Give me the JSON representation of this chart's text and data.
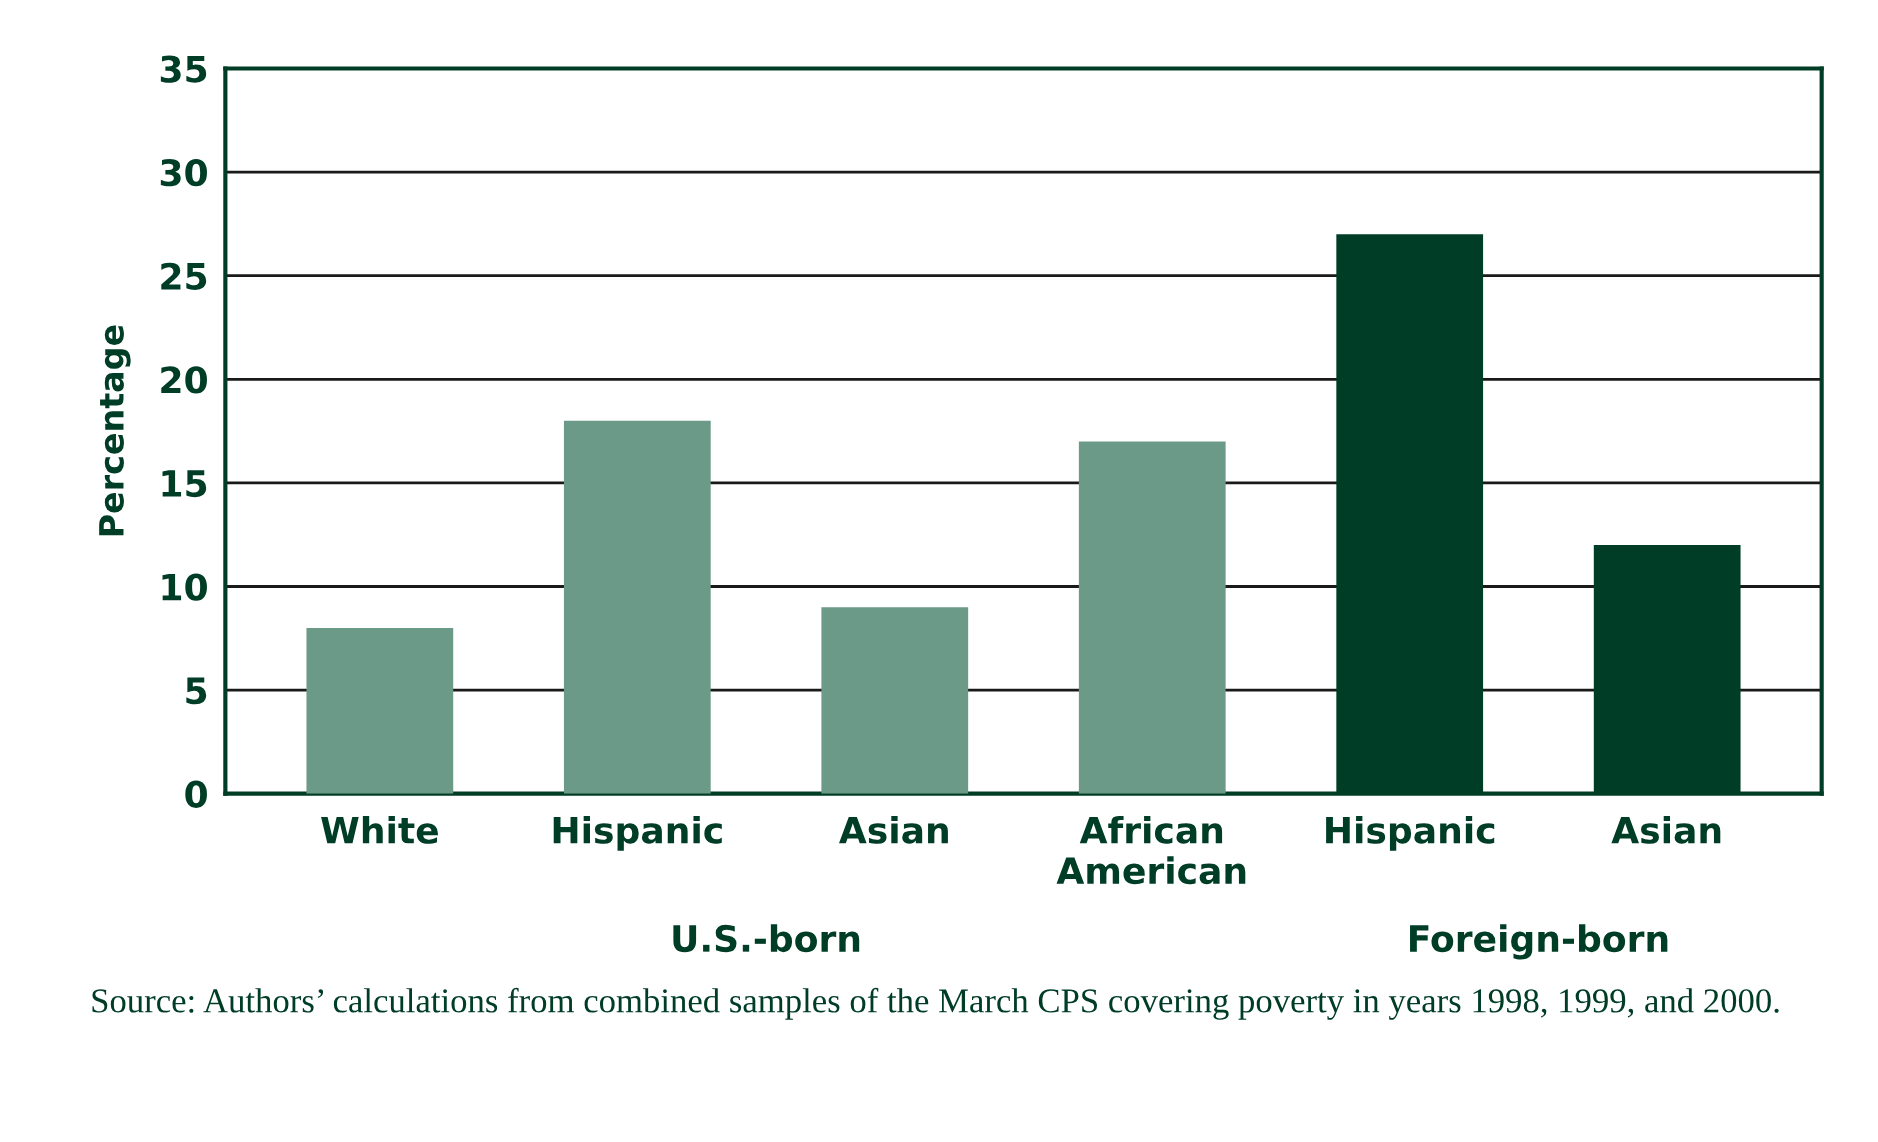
{
  "chart_data": {
    "type": "bar",
    "ylabel": "Percentage",
    "categories": [
      "White",
      "Hispanic",
      "Asian",
      "African\nAmerican",
      "Hispanic",
      "Asian"
    ],
    "values": [
      8,
      18,
      9,
      17,
      27,
      12
    ],
    "colors": [
      "#6b9a89",
      "#6b9a89",
      "#6b9a89",
      "#6b9a89",
      "#003d26",
      "#003d26"
    ],
    "ylim": [
      0,
      35
    ],
    "yticks": [
      0,
      5,
      10,
      15,
      20,
      25,
      30,
      35
    ],
    "grid": "y",
    "annotations": [
      "U.S.-born",
      "Foreign-born",
      "Source: Authors’ calculations from combined samples of the March CPS covering poverty in years 1998, 1999, and 2000."
    ]
  }
}
